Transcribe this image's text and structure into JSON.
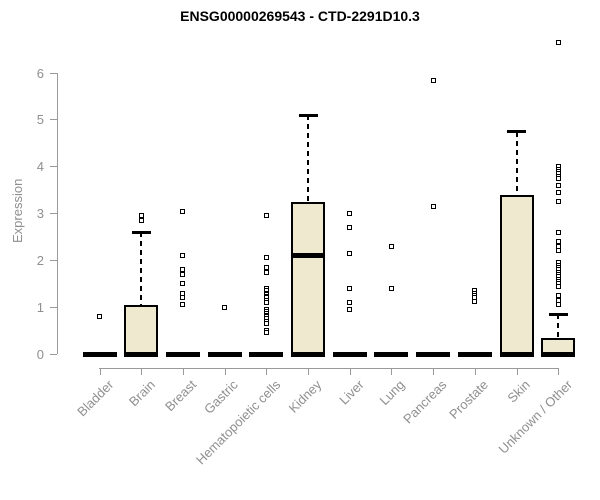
{
  "page": {
    "background": "#ffffff"
  },
  "chart_data": {
    "type": "boxplot",
    "title": "ENSG00000269543 - CTD-2291D10.3",
    "ylabel": "Expression",
    "xlabel": "",
    "ylim": [
      0,
      6
    ],
    "yticks": [
      0,
      1,
      2,
      3,
      4,
      5,
      6
    ],
    "grid": false,
    "legend": "none",
    "colors": {
      "box_fill": "#EEE9CF",
      "box_border": "#000000",
      "median": "#000000",
      "axis": "#9a9a9a",
      "tick_label": "#8f8f8f",
      "title": "#000000"
    },
    "categories": [
      "Bladder",
      "Brain",
      "Breast",
      "Gastric",
      "Hematopoietic cells",
      "Kidney",
      "Liver",
      "Lung",
      "Pancreas",
      "Prostate",
      "Skin",
      "Unknown / Other"
    ],
    "series": [
      {
        "name": "Bladder",
        "q1": 0,
        "median": 0,
        "q3": 0,
        "whisker_low": 0,
        "whisker_high": 0,
        "outliers": [
          0.8
        ]
      },
      {
        "name": "Brain",
        "q1": 0,
        "median": 0,
        "q3": 1.05,
        "whisker_low": 0,
        "whisker_high": 2.6,
        "outliers": [
          2.95,
          2.85
        ]
      },
      {
        "name": "Breast",
        "q1": 0,
        "median": 0,
        "q3": 0,
        "whisker_low": 0,
        "whisker_high": 0,
        "outliers": [
          3.05,
          2.1,
          1.8,
          1.7,
          1.5,
          1.3,
          1.2,
          1.05
        ]
      },
      {
        "name": "Gastric",
        "q1": 0,
        "median": 0,
        "q3": 0,
        "whisker_low": 0,
        "whisker_high": 0,
        "outliers": [
          1.0
        ]
      },
      {
        "name": "Hematopoietic cells",
        "q1": 0,
        "median": 0,
        "q3": 0,
        "whisker_low": 0,
        "whisker_high": 0,
        "outliers": [
          2.95,
          2.05,
          1.85,
          1.75,
          1.4,
          1.35,
          1.3,
          1.27,
          1.23,
          1.2,
          1.15,
          1.1,
          0.95,
          0.9,
          0.87,
          0.83,
          0.8,
          0.75,
          0.7,
          0.65,
          0.5,
          0.45
        ]
      },
      {
        "name": "Kidney",
        "q1": 0,
        "median": 2.1,
        "q3": 3.25,
        "whisker_low": 0,
        "whisker_high": 5.1,
        "outliers": []
      },
      {
        "name": "Liver",
        "q1": 0,
        "median": 0,
        "q3": 0,
        "whisker_low": 0,
        "whisker_high": 0,
        "outliers": [
          3.0,
          2.7,
          2.15,
          1.4,
          1.1,
          0.95
        ]
      },
      {
        "name": "Lung",
        "q1": 0,
        "median": 0,
        "q3": 0,
        "whisker_low": 0,
        "whisker_high": 0,
        "outliers": [
          2.3,
          1.4
        ]
      },
      {
        "name": "Pancreas",
        "q1": 0,
        "median": 0,
        "q3": 0,
        "whisker_low": 0,
        "whisker_high": 0,
        "outliers": [
          5.85,
          3.15
        ]
      },
      {
        "name": "Prostate",
        "q1": 0,
        "median": 0,
        "q3": 0,
        "whisker_low": 0,
        "whisker_high": 0,
        "outliers": [
          1.35,
          1.3,
          1.25,
          1.2,
          1.12
        ]
      },
      {
        "name": "Skin",
        "q1": 0,
        "median": 0,
        "q3": 3.4,
        "whisker_low": 0,
        "whisker_high": 4.75,
        "outliers": []
      },
      {
        "name": "Unknown / Other",
        "q1": 0,
        "median": 0,
        "q3": 0.35,
        "whisker_low": 0,
        "whisker_high": 0.85,
        "outliers": [
          6.65,
          4.0,
          3.95,
          3.9,
          3.85,
          3.8,
          3.75,
          3.6,
          3.45,
          3.25,
          2.6,
          2.4,
          2.3,
          2.2,
          1.95,
          1.9,
          1.85,
          1.8,
          1.75,
          1.7,
          1.65,
          1.6,
          1.55,
          1.5,
          1.45,
          1.25,
          1.15,
          1.05
        ]
      }
    ]
  }
}
